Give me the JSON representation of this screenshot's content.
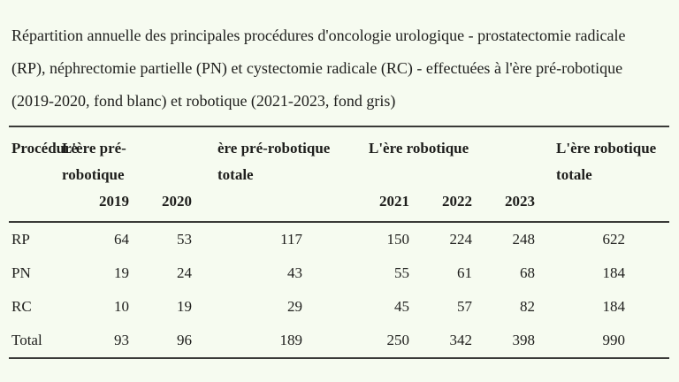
{
  "colors": {
    "background": "#f6fbf0",
    "text": "#1e1e1c",
    "rule": "#3a3a38"
  },
  "chart_data": {
    "type": "table",
    "caption_lines": [
      "Répartition annuelle des principales procédures d'oncologie urologique - prostatectomie radicale",
      "(RP), néphrectomie partielle (PN) et cystectomie radicale (RC) - effectuées à l'ère pré-robotique",
      "(2019-2020, fond blanc) et robotique (2021-2023, fond gris)"
    ],
    "header": {
      "procedure": "Procédure",
      "group_pre": "L'ère pré-robotique",
      "total_pre": "ère pré-robotique totale",
      "group_rob": "L'ère robotique",
      "total_rob": "L'ère robotique totale",
      "year_2019": "2019",
      "year_2020": "2020",
      "year_2021": "2021",
      "year_2022": "2022",
      "year_2023": "2023"
    },
    "rows": [
      {
        "label": "RP",
        "y2019": "64",
        "y2020": "53",
        "pre_total": "117",
        "y2021": "150",
        "y2022": "224",
        "y2023": "248",
        "rob_total": "622"
      },
      {
        "label": "PN",
        "y2019": "19",
        "y2020": "24",
        "pre_total": "43",
        "y2021": "55",
        "y2022": "61",
        "y2023": "68",
        "rob_total": "184"
      },
      {
        "label": "RC",
        "y2019": "10",
        "y2020": "19",
        "pre_total": "29",
        "y2021": "45",
        "y2022": "57",
        "y2023": "82",
        "rob_total": "184"
      },
      {
        "label": "Total",
        "y2019": "93",
        "y2020": "96",
        "pre_total": "189",
        "y2021": "250",
        "y2022": "342",
        "y2023": "398",
        "rob_total": "990"
      }
    ]
  }
}
